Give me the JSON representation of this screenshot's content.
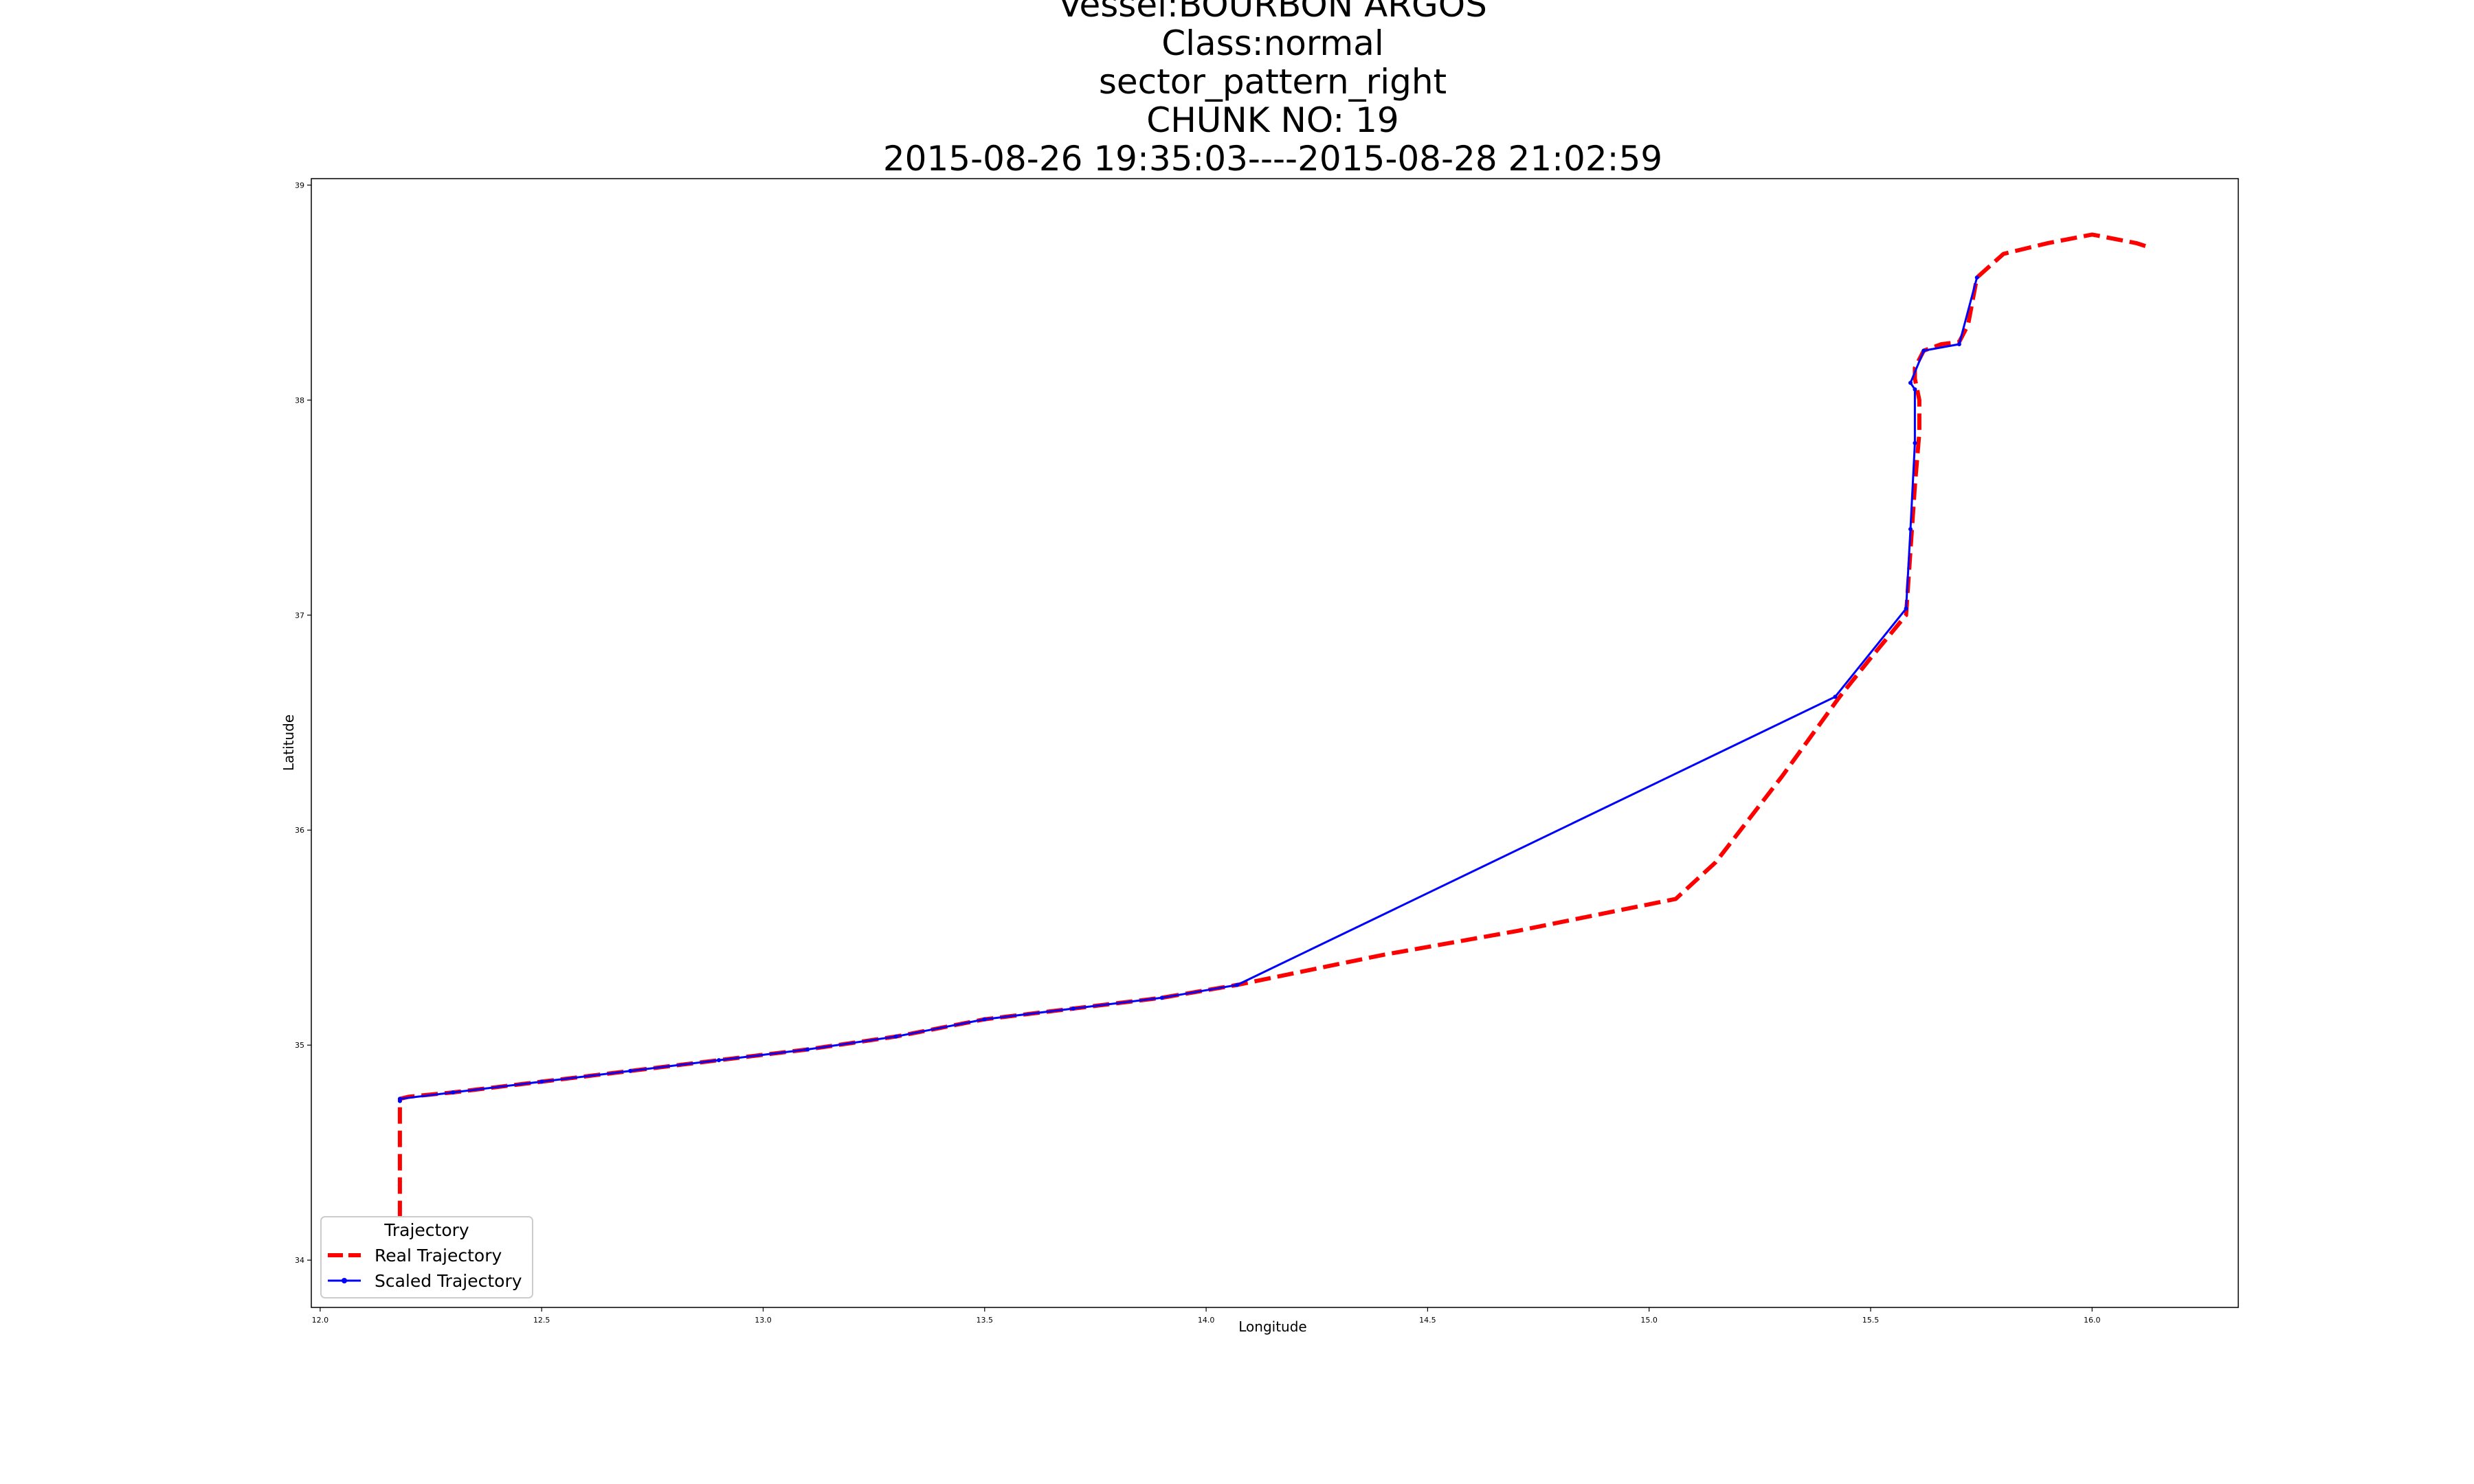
{
  "chart_data": {
    "type": "line",
    "title_lines": [
      "Vessel:BOURBON ARGOS",
      "Class:normal",
      "sector_pattern_right",
      "CHUNK NO: 19",
      "2015-08-26 19:35:03----2015-08-28 21:02:59"
    ],
    "xlabel": "Longitude",
    "ylabel": "Latitude",
    "xlim": [
      11.98,
      16.33
    ],
    "ylim": [
      33.78,
      39.03
    ],
    "xticks": [
      {
        "value": 12.0,
        "label": "12.0"
      },
      {
        "value": 12.5,
        "label": "12.5"
      },
      {
        "value": 13.0,
        "label": "13.0"
      },
      {
        "value": 13.5,
        "label": "13.5"
      },
      {
        "value": 14.0,
        "label": "14.0"
      },
      {
        "value": 14.5,
        "label": "14.5"
      },
      {
        "value": 15.0,
        "label": "15.0"
      },
      {
        "value": 15.5,
        "label": "15.5"
      },
      {
        "value": 16.0,
        "label": "16.0"
      }
    ],
    "yticks": [
      {
        "value": 34,
        "label": "34"
      },
      {
        "value": 35,
        "label": "35"
      },
      {
        "value": 36,
        "label": "36"
      },
      {
        "value": 37,
        "label": "37"
      },
      {
        "value": 38,
        "label": "38"
      },
      {
        "value": 39,
        "label": "39"
      }
    ],
    "grid": false,
    "legend": {
      "title": "Trajectory",
      "placement": "lower-left",
      "entries": [
        "Real Trajectory",
        "Scaled Trajectory"
      ]
    },
    "series": [
      {
        "name": "Real Trajectory",
        "color": "#ff0000",
        "style": "dashed",
        "x": [
          12.18,
          12.18,
          12.18,
          12.18,
          12.18,
          12.18,
          12.18,
          12.2,
          12.3,
          12.5,
          12.7,
          12.9,
          13.1,
          13.3,
          13.5,
          13.7,
          13.9,
          14.07,
          14.4,
          14.7,
          15.06,
          15.15,
          15.3,
          15.43,
          15.5,
          15.58,
          15.59,
          15.6,
          15.61,
          15.61,
          15.6,
          15.6,
          15.6,
          15.62,
          15.66,
          15.7,
          15.72,
          15.74,
          15.8,
          15.9,
          16.0,
          16.1,
          16.13
        ],
        "y": [
          34.2,
          34.3,
          34.4,
          34.5,
          34.6,
          34.7,
          34.75,
          34.76,
          34.78,
          34.83,
          34.88,
          34.93,
          34.98,
          35.04,
          35.12,
          35.17,
          35.22,
          35.28,
          35.42,
          35.53,
          35.68,
          35.85,
          36.25,
          36.62,
          36.8,
          37.0,
          37.3,
          37.6,
          37.85,
          38.0,
          38.1,
          38.15,
          38.15,
          38.23,
          38.26,
          38.27,
          38.35,
          38.57,
          38.68,
          38.73,
          38.77,
          38.73,
          38.71
        ]
      },
      {
        "name": "Scaled Trajectory",
        "color": "#0000ff",
        "style": "solid-dot",
        "x": [
          12.18,
          12.18,
          12.3,
          12.5,
          12.7,
          12.9,
          13.1,
          13.3,
          13.5,
          13.7,
          13.9,
          14.07,
          15.42,
          15.58,
          15.59,
          15.6,
          15.6,
          15.59,
          15.62,
          15.7,
          15.74
        ],
        "y": [
          34.74,
          34.75,
          34.78,
          34.83,
          34.88,
          34.93,
          34.98,
          35.04,
          35.12,
          35.17,
          35.22,
          35.28,
          36.62,
          37.03,
          37.4,
          37.8,
          38.05,
          38.08,
          38.23,
          38.26,
          38.57
        ]
      }
    ]
  }
}
